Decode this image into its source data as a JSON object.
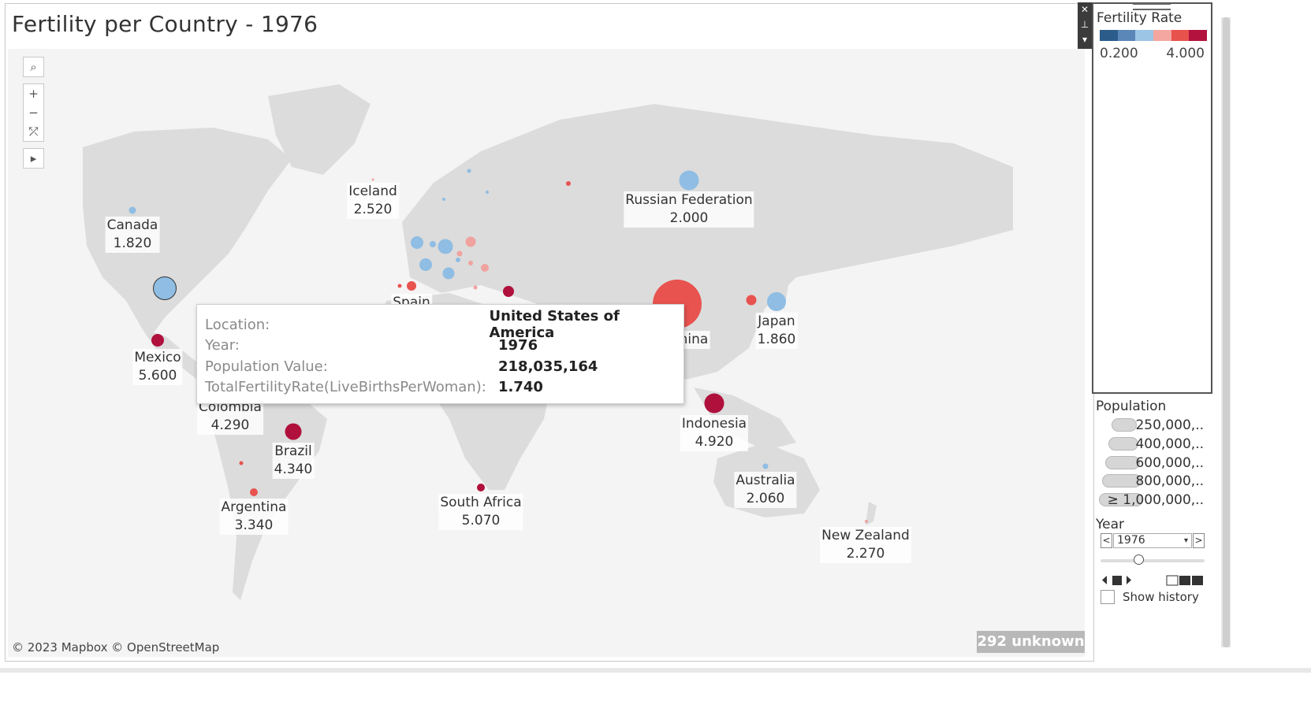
{
  "title": "Fertility per Country - 1976",
  "attribution": "© 2023 Mapbox © OpenStreetMap",
  "unknown_badge": "292 unknown",
  "map_tools": {
    "search": "⌕",
    "zoom_in": "+",
    "zoom_out": "−",
    "reset": "⤱",
    "expand": "▸"
  },
  "control_strip": {
    "close": "✕",
    "pin": "⊥",
    "menu": "▾"
  },
  "colors": {
    "ramp": [
      "#2b5c8a",
      "#5a86b8",
      "#9cc4e4",
      "#f4a6a0",
      "#e8524d",
      "#b3123e"
    ],
    "blue": "#8fbde3",
    "light_red": "#f0a29e",
    "red": "#e8534f",
    "dark_red": "#b0103c"
  },
  "chart_data": {
    "type": "map",
    "title": "Fertility per Country - 1976",
    "color_legend": {
      "title": "Fertility Rate",
      "min": "0.200",
      "max": "4.000"
    },
    "size_legend": {
      "title": "Population",
      "items": [
        "250,000,..",
        "400,000,..",
        "600,000,..",
        "800,000,..",
        "≥ 1,000,000,.."
      ]
    },
    "labeled_countries": [
      {
        "name": "Canada",
        "value": "1.820"
      },
      {
        "name": "Iceland",
        "value": "2.520"
      },
      {
        "name": "Russian Federation",
        "value": "2.000"
      },
      {
        "name": "Japan",
        "value": "1.860"
      },
      {
        "name": "Mexico",
        "value": "5.600"
      },
      {
        "name": "Colombia",
        "value": "4.290"
      },
      {
        "name": "Brazil",
        "value": "4.340"
      },
      {
        "name": "Argentina",
        "value": "3.340"
      },
      {
        "name": "South Africa",
        "value": "5.070"
      },
      {
        "name": "Indonesia",
        "value": "4.920"
      },
      {
        "name": "Australia",
        "value": "2.060"
      },
      {
        "name": "New Zealand",
        "value": "2.270"
      },
      {
        "name": "Spain",
        "value": ""
      },
      {
        "name": "China",
        "value": ""
      }
    ]
  },
  "tooltip": {
    "rows": [
      {
        "key": "Location:",
        "value": "United States of America"
      },
      {
        "key": "Year:",
        "value": "1976"
      },
      {
        "key": "Population Value:",
        "value": "218,035,164"
      },
      {
        "key": "TotalFertilityRate(LiveBirthsPerWoman):",
        "value": "1.740"
      }
    ]
  },
  "year_filter": {
    "title": "Year",
    "value": "1976",
    "prev": "<",
    "next": ">",
    "caret": "▾",
    "show_history": "Show history"
  }
}
